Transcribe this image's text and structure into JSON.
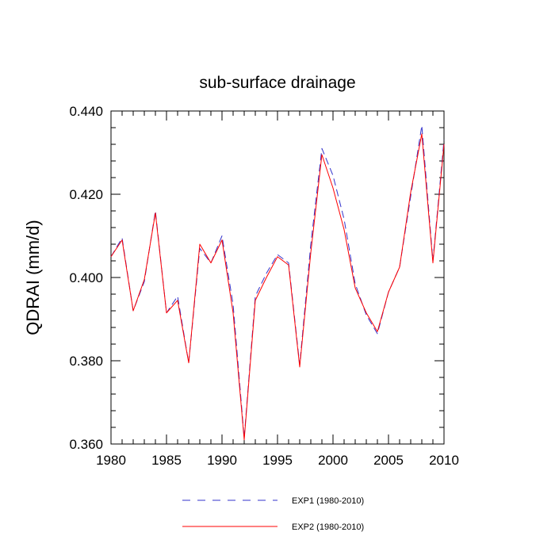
{
  "chart_data": {
    "type": "line",
    "title": "sub-surface drainage",
    "xlabel": "",
    "ylabel": "QDRAI  (mm/d)",
    "xlim": [
      1980,
      2010
    ],
    "ylim": [
      0.36,
      0.44
    ],
    "xticks": [
      "1980",
      "1985",
      "1990",
      "1995",
      "2000",
      "2005",
      "2010"
    ],
    "yticks": [
      "0.360",
      "0.380",
      "0.400",
      "0.420",
      "0.440"
    ],
    "grid": false,
    "legend_position": "bottom",
    "x": [
      1980,
      1981,
      1982,
      1983,
      1984,
      1985,
      1986,
      1987,
      1988,
      1989,
      1990,
      1991,
      1992,
      1993,
      1994,
      1995,
      1996,
      1997,
      1998,
      1999,
      2000,
      2001,
      2002,
      2003,
      2004,
      2005,
      2006,
      2007,
      2008,
      2009,
      2010
    ],
    "series": [
      {
        "name": "EXP1 (1980-2010)",
        "color": "#3333cc",
        "dash": "dashed",
        "values": [
          0.405,
          0.4095,
          0.392,
          0.399,
          0.416,
          0.3915,
          0.3955,
          0.3795,
          0.407,
          0.4035,
          0.41,
          0.3935,
          0.3615,
          0.3955,
          0.401,
          0.4055,
          0.4035,
          0.379,
          0.408,
          0.431,
          0.4245,
          0.414,
          0.3985,
          0.391,
          0.3865,
          0.3965,
          0.4025,
          0.4195,
          0.4365,
          0.404,
          0.433
        ]
      },
      {
        "name": "EXP2 (1980-2010)",
        "color": "#ff0000",
        "dash": "solid",
        "values": [
          0.405,
          0.409,
          0.392,
          0.3995,
          0.4155,
          0.3915,
          0.3945,
          0.3795,
          0.408,
          0.4035,
          0.409,
          0.3915,
          0.361,
          0.3945,
          0.4,
          0.405,
          0.403,
          0.3785,
          0.406,
          0.4295,
          0.4215,
          0.4115,
          0.3975,
          0.3915,
          0.387,
          0.3965,
          0.4025,
          0.4205,
          0.4345,
          0.4035,
          0.432
        ]
      }
    ]
  }
}
